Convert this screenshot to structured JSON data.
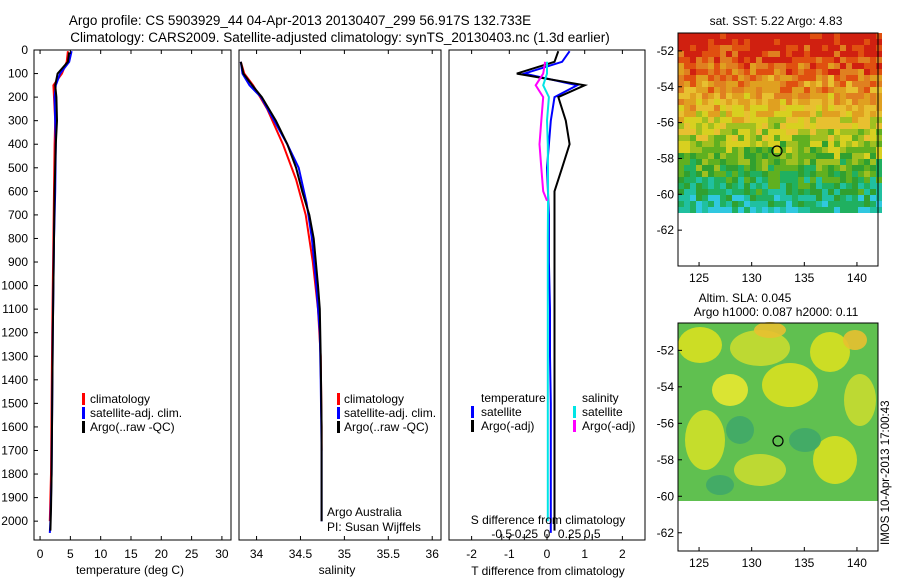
{
  "header": {
    "line1": "Argo profile: CS 5903929_44 04-Apr-2013 20130407_299 56.917S 132.733E",
    "line2": "Climatology: CARS2009. Satellite-adjusted climatology: synTS_20130403.nc (1.3d earlier)"
  },
  "colors": {
    "climatology": "#ff0000",
    "satellite": "#0000ff",
    "argo": "#000000",
    "satellite_salinity": "#00e5e5",
    "argo_salinity": "#ff00ff"
  },
  "chart_data": [
    {
      "type": "line",
      "name": "temperature",
      "xlabel": "temperature (deg C)",
      "ylim": [
        2080,
        0
      ],
      "xlim": [
        -1,
        31.5
      ],
      "xticks": [
        0,
        5,
        10,
        15,
        20,
        25,
        30
      ],
      "yticks": [
        0,
        100,
        200,
        300,
        400,
        500,
        600,
        700,
        800,
        900,
        1000,
        1100,
        1200,
        1300,
        1400,
        1500,
        1600,
        1700,
        1800,
        1900,
        2000
      ],
      "legend": [
        "climatology",
        "satellite-adj. clim.",
        "Argo(..raw -QC)"
      ],
      "series": [
        {
          "name": "climatology",
          "color": "#ff0000",
          "x": [
            4.6,
            4.4,
            3.6,
            2.2,
            2.3,
            2.5,
            2.4,
            2.3,
            2.2,
            2.1,
            2.0,
            1.9,
            1.8,
            1.6
          ],
          "y": [
            5,
            50,
            100,
            150,
            200,
            300,
            400,
            600,
            800,
            1000,
            1200,
            1500,
            1800,
            2000
          ]
        },
        {
          "name": "satellite-adj. clim.",
          "color": "#0000ff",
          "x": [
            5.2,
            4.8,
            3.3,
            2.6,
            2.4,
            2.5,
            2.6,
            2.5,
            2.3,
            2.2,
            2.1,
            2.0,
            1.9,
            1.7,
            1.6
          ],
          "y": [
            5,
            50,
            100,
            150,
            200,
            300,
            400,
            600,
            800,
            1000,
            1200,
            1500,
            1800,
            2000,
            2050
          ]
        },
        {
          "name": "Argo(..raw -QC)",
          "color": "#000000",
          "x": [
            4.8,
            4.6,
            2.9,
            2.5,
            2.7,
            2.8,
            2.6,
            2.5,
            2.4,
            2.3,
            2.2,
            2.1,
            2.0,
            1.9,
            1.8,
            1.7
          ],
          "y": [
            10,
            50,
            100,
            150,
            200,
            300,
            400,
            500,
            600,
            800,
            1000,
            1200,
            1500,
            1800,
            1950,
            2040
          ]
        }
      ]
    },
    {
      "type": "line",
      "name": "salinity",
      "xlabel": "salinity",
      "ylim": [
        2080,
        0
      ],
      "xlim": [
        33.8,
        36.1
      ],
      "xticks": [
        34,
        34.5,
        35,
        35.5,
        36
      ],
      "xticklabels": [
        "34",
        "34.5",
        "35",
        "35.5",
        "36"
      ],
      "legend": [
        "climatology",
        "satellite-adj. clim.",
        "Argo(..raw -QC)"
      ],
      "annotation": [
        "Argo Australia",
        "PI: Susan Wijffels"
      ],
      "series": [
        {
          "name": "climatology",
          "color": "#ff0000",
          "x": [
            33.82,
            33.86,
            33.96,
            34.12,
            34.3,
            34.45,
            34.56,
            34.64,
            34.7,
            34.73,
            34.74,
            34.74
          ],
          "y": [
            50,
            100,
            150,
            250,
            400,
            550,
            700,
            900,
            1100,
            1300,
            1600,
            1700
          ]
        },
        {
          "name": "satellite-adj. clim.",
          "color": "#0000ff",
          "x": [
            33.82,
            33.84,
            33.92,
            34.05,
            34.2,
            34.35,
            34.48,
            34.57,
            34.63,
            34.68,
            34.72,
            34.73,
            34.74,
            34.74
          ],
          "y": [
            50,
            100,
            150,
            200,
            300,
            400,
            500,
            650,
            800,
            1000,
            1200,
            1400,
            1700,
            2000
          ]
        },
        {
          "name": "Argo(..raw -QC)",
          "color": "#000000",
          "x": [
            33.82,
            33.85,
            33.95,
            34.06,
            34.22,
            34.35,
            34.45,
            34.52,
            34.6,
            34.65,
            34.7,
            34.72,
            34.73,
            34.74,
            34.74
          ],
          "y": [
            50,
            100,
            150,
            200,
            300,
            400,
            500,
            600,
            700,
            800,
            1000,
            1100,
            1300,
            1600,
            2000
          ]
        }
      ]
    },
    {
      "type": "line",
      "name": "difference",
      "xlabel": "T difference from climatology",
      "xlabel_top": "S difference from climatology",
      "ylim": [
        2080,
        0
      ],
      "xlim": [
        -2.6,
        2.6
      ],
      "xticks": [
        -2,
        -1,
        0,
        1,
        2
      ],
      "xticklabels": [
        "-2",
        "-1",
        "0",
        "1",
        "2"
      ],
      "s_xticklabels": [
        "-0.5",
        "-0.25",
        "0",
        "0.25",
        "0.5"
      ],
      "legend_temperature_title": "temperature",
      "legend_salinity_title": "salinity",
      "legend": [
        "satellite",
        "Argo(-adj)",
        "satellite",
        "Argo(-adj)"
      ],
      "series": [
        {
          "name": "temperature satellite",
          "color": "#0000ff",
          "x": [
            0.6,
            0.4,
            -0.6,
            0.8,
            0.2,
            0.1,
            0.0,
            0.05,
            0.05,
            0.08,
            0.08,
            0.1,
            0.1,
            0.1,
            0.1
          ],
          "y": [
            5,
            50,
            100,
            150,
            200,
            300,
            500,
            700,
            900,
            1100,
            1300,
            1500,
            1700,
            1900,
            2050
          ]
        },
        {
          "name": "temperature Argo(-adj)",
          "color": "#000000",
          "x": [
            0.3,
            0.2,
            -0.8,
            1.0,
            0.3,
            0.5,
            0.6,
            0.4,
            0.2,
            0.2,
            0.2,
            0.2,
            0.2,
            0.2,
            0.2
          ],
          "y": [
            5,
            50,
            100,
            150,
            200,
            300,
            400,
            500,
            600,
            800,
            1000,
            1200,
            1500,
            1800,
            2040
          ]
        },
        {
          "name": "salinity satellite",
          "color": "#00e5e5",
          "x": [
            0.0,
            0.0,
            -0.1,
            0.05,
            0.0,
            0.02,
            0.03,
            0.02,
            0.02,
            0.02,
            0.02,
            0.02,
            0.02,
            0.02
          ],
          "y": [
            50,
            100,
            150,
            200,
            300,
            400,
            600,
            800,
            1000,
            1200,
            1400,
            1600,
            1800,
            2000
          ]
        },
        {
          "name": "salinity Argo(-adj)",
          "color": "#ff00ff",
          "x": [
            -0.05,
            -0.1,
            -0.3,
            -0.1,
            -0.15,
            -0.2,
            -0.15,
            -0.1,
            0.0
          ],
          "y": [
            50,
            100,
            150,
            200,
            300,
            400,
            500,
            600,
            640
          ]
        }
      ]
    },
    {
      "type": "heatmap",
      "name": "sst-map",
      "title": "sat. SST: 5.22 Argo: 4.83",
      "xlim": [
        123,
        142
      ],
      "ylim": [
        -64,
        -51
      ],
      "xticks": [
        125,
        130,
        135,
        140
      ],
      "yticks": [
        -52,
        -54,
        -56,
        -58,
        -60,
        -62
      ],
      "marker": {
        "lon": 132.733,
        "lat": -56.917
      }
    },
    {
      "type": "heatmap",
      "name": "sla-map",
      "title_line1": "Altim. SLA: 0.045",
      "title_line2": "Argo h1000: 0.087 h2000: 0.11",
      "xlim": [
        123,
        142
      ],
      "ylim": [
        -63,
        -50.5
      ],
      "xticks": [
        125,
        130,
        135,
        140
      ],
      "yticks": [
        -52,
        -54,
        -56,
        -58,
        -60,
        -62
      ],
      "marker": {
        "lon": 132.733,
        "lat": -56.917
      }
    }
  ],
  "credit": "IMOS 10-Apr-2013 17:00:43"
}
